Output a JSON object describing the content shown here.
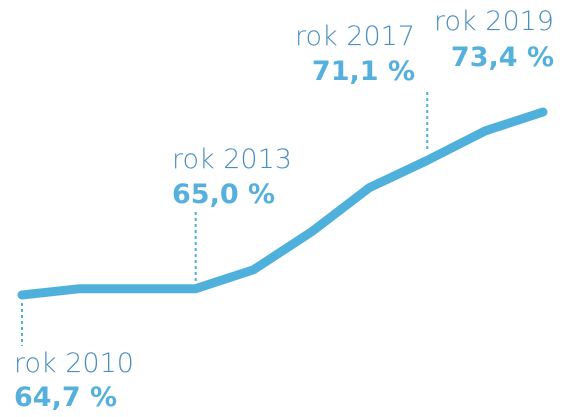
{
  "chart_data": {
    "type": "line",
    "categories": [
      "rok 2010",
      null,
      null,
      "rok 2013",
      null,
      null,
      null,
      "rok 2017",
      null,
      "rok 2019"
    ],
    "values": [
      64.7,
      65.0,
      65.0,
      65.0,
      65.9,
      67.7,
      69.8,
      71.1,
      72.5,
      73.4
    ],
    "value_labels": [
      "64,7 %",
      null,
      null,
      "65,0 %",
      null,
      null,
      null,
      "71,1 %",
      null,
      "73,4 %"
    ],
    "color": "#4fb0dc"
  }
}
